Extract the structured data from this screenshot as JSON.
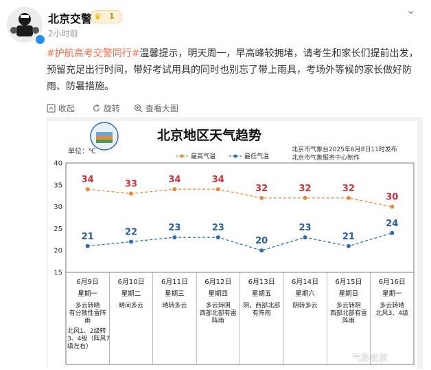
{
  "user": {
    "name": "北京交警",
    "time": "2小时前",
    "level": "1"
  },
  "post": {
    "hashtag": "#护航高考交警同行#",
    "body": "温馨提示，明天周一，早高峰较拥堵，请考生和家长们提前出发，预留充足出行时间，带好考试用具的同时也别忘了带上雨具，考场外等候的家长做好防雨、防暑措施。"
  },
  "toolbar": {
    "collapse": "收起",
    "rotate": "旋转",
    "view_large": "查看大图"
  },
  "watermark": "气象北京",
  "chart_data": {
    "type": "line",
    "title": "北京地区天气趋势",
    "unit_label": "单位：℃",
    "source_line1": "北京市气象台2025年6月8日11时发布",
    "source_line2": "北京市气象服务中心制作",
    "ylim": [
      15,
      40
    ],
    "y_ticks": [
      "40",
      "35",
      "30",
      "25",
      "20",
      "15"
    ],
    "colors": {
      "high": "#e88a3c",
      "low": "#2f6ea8",
      "high_label": "#c8333a",
      "low_label": "#2a5e9a"
    },
    "series": [
      {
        "name": "最高气温",
        "values": [
          34,
          33,
          34,
          34,
          32,
          32,
          32,
          30
        ]
      },
      {
        "name": "最低气温",
        "values": [
          21,
          22,
          23,
          23,
          20,
          23,
          21,
          24
        ]
      }
    ],
    "days": [
      {
        "date": "6月9日",
        "weekday": "星期一",
        "weather": [
          "多云转晴",
          "有分散性雷阵",
          "雨"
        ],
        "wind": [
          "北风1、2级转",
          "3、4级（阵风7",
          "级左右）"
        ]
      },
      {
        "date": "6月10日",
        "weekday": "星期二",
        "weather": [
          "晴间多云"
        ],
        "wind": []
      },
      {
        "date": "6月11日",
        "weekday": "星期三",
        "weather": [
          "晴转多云"
        ],
        "wind": []
      },
      {
        "date": "6月12日",
        "weekday": "星期四",
        "weather": [
          "多云转阴",
          "西部北部有雷",
          "阵雨"
        ],
        "wind": []
      },
      {
        "date": "6月13日",
        "weekday": "星期五",
        "weather": [
          "阴，西部北部",
          "有阵雨"
        ],
        "wind": []
      },
      {
        "date": "6月14日",
        "weekday": "星期六",
        "weather": [
          "阴转多云"
        ],
        "wind": []
      },
      {
        "date": "6月15日",
        "weekday": "星期日",
        "weather": [
          "多云转阴",
          "西部北部有雷",
          "阵雨"
        ],
        "wind": []
      },
      {
        "date": "6月16日",
        "weekday": "星期一",
        "weather": [
          "多云转晴",
          "北风3、4级"
        ],
        "wind": []
      }
    ]
  }
}
